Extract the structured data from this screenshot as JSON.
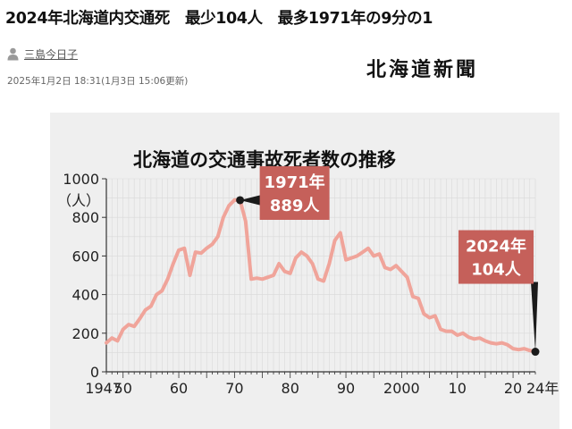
{
  "article": {
    "headline": "2024年北海道内交通死　最少104人　最多1971年の9分の1",
    "author": "三島今日子",
    "timestamp": "2025年1月2日 18:31(1月3日 15:06更新)",
    "brand": "北海道新聞",
    "icons": {
      "author": "person-icon"
    }
  },
  "chart_data": {
    "type": "line",
    "title": "北海道の交通事故死者数の推移",
    "ylabel": "（人）",
    "ylim": [
      0,
      1000
    ],
    "xlim": [
      1947,
      2024
    ],
    "yticks": [
      0,
      200,
      400,
      600,
      800,
      1000
    ],
    "xtick_labels": [
      {
        "x": 1947,
        "label": "1947"
      },
      {
        "x": 1950,
        "label": "50"
      },
      {
        "x": 1960,
        "label": "60"
      },
      {
        "x": 1970,
        "label": "70"
      },
      {
        "x": 1980,
        "label": "80"
      },
      {
        "x": 1990,
        "label": "90"
      },
      {
        "x": 2000,
        "label": "2000"
      },
      {
        "x": 2010,
        "label": "10"
      },
      {
        "x": 2020,
        "label": "20"
      },
      {
        "x": 2024,
        "label": "24年"
      }
    ],
    "grid": true,
    "colors": {
      "line": "#f0a49a",
      "callout": "#c5605a",
      "point": "#1a1a1a"
    },
    "series": [
      {
        "x": [
          1947,
          1948,
          1949,
          1950,
          1951,
          1952,
          1953,
          1954,
          1955,
          1956,
          1957,
          1958,
          1959,
          1960,
          1961,
          1962,
          1963,
          1964,
          1965,
          1966,
          1967,
          1968,
          1969,
          1970,
          1971,
          1972,
          1973,
          1974,
          1975,
          1976,
          1977,
          1978,
          1979,
          1980,
          1981,
          1982,
          1983,
          1984,
          1985,
          1986,
          1987,
          1988,
          1989,
          1990,
          1991,
          1992,
          1993,
          1994,
          1995,
          1996,
          1997,
          1998,
          1999,
          2000,
          2001,
          2002,
          2003,
          2004,
          2005,
          2006,
          2007,
          2008,
          2009,
          2010,
          2011,
          2012,
          2013,
          2014,
          2015,
          2016,
          2017,
          2018,
          2019,
          2020,
          2021,
          2022,
          2023,
          2024
        ],
        "values": [
          150,
          175,
          160,
          220,
          245,
          235,
          275,
          320,
          340,
          400,
          420,
          480,
          560,
          630,
          640,
          500,
          620,
          615,
          640,
          660,
          700,
          800,
          860,
          890,
          889,
          780,
          480,
          485,
          480,
          490,
          500,
          560,
          520,
          510,
          590,
          620,
          600,
          560,
          480,
          470,
          560,
          680,
          720,
          580,
          590,
          600,
          620,
          640,
          600,
          610,
          540,
          530,
          550,
          520,
          490,
          390,
          380,
          300,
          280,
          290,
          220,
          210,
          210,
          190,
          200,
          180,
          170,
          175,
          160,
          150,
          145,
          150,
          140,
          120,
          115,
          120,
          110,
          104
        ]
      }
    ],
    "annotations": [
      {
        "x": 1971,
        "y": 889,
        "year_text": "1971年",
        "value_text": "889人"
      },
      {
        "x": 2024,
        "y": 104,
        "year_text": "2024年",
        "value_text": "104人"
      }
    ]
  }
}
